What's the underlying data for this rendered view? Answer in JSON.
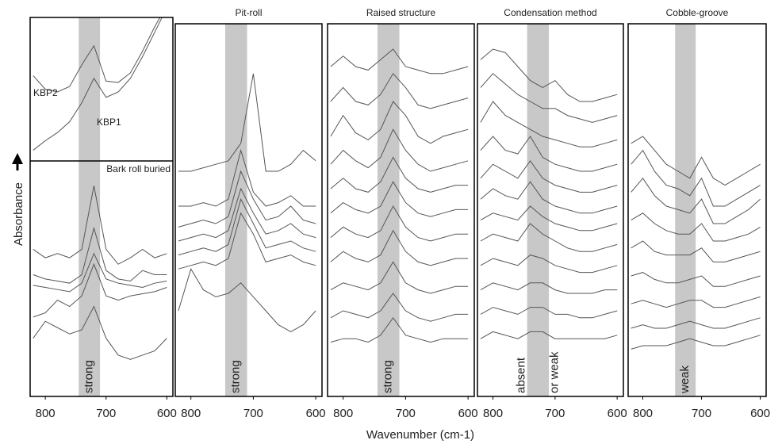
{
  "y_label": "Absorbance",
  "x_label": "Wavenumber (cm-1)",
  "chart_data": [
    {
      "type": "line",
      "title": "Bark roll buried",
      "band": [
        745,
        710
      ],
      "band_color": "#c8c8c8",
      "band_labels": [
        "strong"
      ],
      "xlim": [
        825,
        590
      ],
      "xticks": [
        800,
        700,
        600
      ],
      "ylim": [
        0,
        100
      ],
      "x": [
        820,
        800,
        780,
        760,
        740,
        720,
        700,
        680,
        660,
        640,
        620,
        600
      ],
      "inset": {
        "labels": [
          "KBP2",
          "KBP1"
        ],
        "ylim": [
          0,
          100
        ],
        "series": [
          {
            "color": "#555",
            "values": [
              60,
              50,
              48,
              52,
              68,
              82,
              56,
              55,
              62,
              78,
              96,
              112
            ]
          },
          {
            "color": "#555",
            "values": [
              5,
              12,
              18,
              26,
              40,
              58,
              44,
              48,
              58,
              74,
              92,
              110
            ]
          }
        ]
      },
      "series": [
        {
          "color": "#555",
          "values": [
            62,
            58,
            60,
            58,
            62,
            92,
            62,
            55,
            58,
            62,
            58,
            60
          ]
        },
        {
          "color": "#555",
          "values": [
            50,
            48,
            47,
            46,
            50,
            72,
            52,
            48,
            47,
            52,
            50,
            50
          ]
        },
        {
          "color": "#555",
          "values": [
            45,
            44,
            43,
            42,
            46,
            60,
            48,
            46,
            45,
            44,
            46,
            47
          ]
        },
        {
          "color": "#555",
          "values": [
            30,
            32,
            38,
            35,
            40,
            55,
            40,
            38,
            40,
            41,
            42,
            44
          ]
        },
        {
          "color": "#555",
          "values": [
            20,
            28,
            25,
            22,
            24,
            35,
            20,
            12,
            10,
            12,
            14,
            20
          ]
        }
      ]
    },
    {
      "type": "line",
      "title": "Pit-roll",
      "band": [
        745,
        710
      ],
      "band_color": "#c8c8c8",
      "band_labels": [
        "strong"
      ],
      "xlim": [
        825,
        590
      ],
      "xticks": [
        800,
        700,
        600
      ],
      "ylim": [
        0,
        100
      ],
      "x": [
        820,
        800,
        780,
        760,
        740,
        720,
        700,
        680,
        660,
        640,
        620,
        600
      ],
      "series": [
        {
          "color": "#555",
          "values": [
            60,
            60,
            61,
            62,
            63,
            68,
            88,
            60,
            60,
            62,
            66,
            63
          ]
        },
        {
          "color": "#555",
          "values": [
            50,
            50,
            51,
            50,
            52,
            66,
            54,
            50,
            51,
            53,
            50,
            50
          ]
        },
        {
          "color": "#555",
          "values": [
            44,
            45,
            46,
            45,
            47,
            60,
            52,
            46,
            47,
            50,
            46,
            45
          ]
        },
        {
          "color": "#555",
          "values": [
            40,
            41,
            42,
            41,
            43,
            55,
            48,
            42,
            43,
            45,
            42,
            41
          ]
        },
        {
          "color": "#555",
          "values": [
            36,
            37,
            38,
            37,
            39,
            52,
            45,
            38,
            39,
            40,
            38,
            37
          ]
        },
        {
          "color": "#555",
          "values": [
            32,
            33,
            34,
            33,
            35,
            48,
            42,
            34,
            35,
            36,
            34,
            33
          ]
        },
        {
          "color": "#555",
          "values": [
            20,
            32,
            26,
            24,
            25,
            28,
            24,
            20,
            16,
            14,
            16,
            20
          ]
        }
      ]
    },
    {
      "type": "line",
      "title": "Raised structure",
      "band": [
        745,
        710
      ],
      "band_color": "#c8c8c8",
      "band_labels": [
        "strong"
      ],
      "xlim": [
        825,
        590
      ],
      "xticks": [
        800,
        700,
        600
      ],
      "ylim": [
        0,
        100
      ],
      "x": [
        820,
        800,
        780,
        760,
        740,
        720,
        700,
        680,
        660,
        640,
        620,
        600
      ],
      "series": [
        {
          "color": "#555",
          "values": [
            90,
            93,
            90,
            89,
            92,
            95,
            90,
            89,
            88,
            88,
            89,
            90
          ]
        },
        {
          "color": "#555",
          "values": [
            80,
            84,
            80,
            79,
            82,
            88,
            84,
            79,
            78,
            79,
            80,
            81
          ]
        },
        {
          "color": "#555",
          "values": [
            70,
            76,
            71,
            69,
            72,
            80,
            76,
            70,
            68,
            70,
            71,
            72
          ]
        },
        {
          "color": "#555",
          "values": [
            62,
            66,
            63,
            61,
            64,
            72,
            66,
            62,
            60,
            61,
            62,
            63
          ]
        },
        {
          "color": "#555",
          "values": [
            55,
            58,
            55,
            54,
            57,
            64,
            58,
            55,
            54,
            55,
            56,
            56
          ]
        },
        {
          "color": "#555",
          "values": [
            48,
            51,
            49,
            48,
            50,
            57,
            51,
            48,
            47,
            48,
            49,
            49
          ]
        },
        {
          "color": "#555",
          "values": [
            41,
            44,
            42,
            41,
            43,
            50,
            44,
            41,
            40,
            41,
            42,
            42
          ]
        },
        {
          "color": "#555",
          "values": [
            34,
            37,
            35,
            34,
            36,
            43,
            37,
            34,
            33,
            34,
            35,
            35
          ]
        },
        {
          "color": "#555",
          "values": [
            26,
            28,
            27,
            26,
            28,
            34,
            28,
            26,
            25,
            26,
            27,
            27
          ]
        },
        {
          "color": "#555",
          "values": [
            18,
            20,
            19,
            18,
            20,
            25,
            20,
            18,
            17,
            18,
            19,
            19
          ]
        },
        {
          "color": "#555",
          "values": [
            11,
            12,
            12,
            11,
            13,
            18,
            13,
            12,
            11,
            12,
            12,
            12
          ]
        }
      ]
    },
    {
      "type": "line",
      "title": "Condensation method",
      "band": [
        745,
        710
      ],
      "band_color": "#c8c8c8",
      "band_labels": [
        "absent",
        "or weak"
      ],
      "xlim": [
        825,
        590
      ],
      "xticks": [
        800,
        700,
        600
      ],
      "ylim": [
        0,
        100
      ],
      "x": [
        820,
        800,
        780,
        760,
        740,
        720,
        700,
        680,
        660,
        640,
        620,
        600
      ],
      "series": [
        {
          "color": "#555",
          "values": [
            92,
            95,
            94,
            90,
            86,
            84,
            86,
            82,
            80,
            80,
            81,
            82
          ]
        },
        {
          "color": "#555",
          "values": [
            84,
            88,
            85,
            82,
            80,
            78,
            78,
            76,
            75,
            74,
            75,
            76
          ]
        },
        {
          "color": "#555",
          "values": [
            74,
            80,
            76,
            74,
            72,
            70,
            69,
            68,
            67,
            67,
            68,
            69
          ]
        },
        {
          "color": "#555",
          "values": [
            66,
            70,
            66,
            65,
            70,
            64,
            62,
            61,
            60,
            60,
            61,
            62
          ]
        },
        {
          "color": "#555",
          "values": [
            58,
            62,
            60,
            58,
            63,
            58,
            56,
            55,
            54,
            54,
            55,
            56
          ]
        },
        {
          "color": "#555",
          "values": [
            52,
            55,
            53,
            52,
            57,
            52,
            50,
            49,
            48,
            48,
            49,
            50
          ]
        },
        {
          "color": "#555",
          "values": [
            46,
            48,
            47,
            46,
            50,
            47,
            45,
            44,
            43,
            43,
            44,
            45
          ]
        },
        {
          "color": "#555",
          "values": [
            40,
            42,
            41,
            40,
            45,
            42,
            40,
            38,
            37,
            37,
            38,
            39
          ]
        },
        {
          "color": "#555",
          "values": [
            33,
            35,
            34,
            33,
            36,
            35,
            33,
            32,
            31,
            31,
            32,
            33
          ]
        },
        {
          "color": "#555",
          "values": [
            26,
            28,
            27,
            26,
            28,
            28,
            26,
            25,
            25,
            25,
            26,
            26
          ]
        },
        {
          "color": "#555",
          "values": [
            19,
            21,
            20,
            19,
            21,
            21,
            19,
            19,
            18,
            18,
            19,
            20
          ]
        },
        {
          "color": "#555",
          "values": [
            12,
            14,
            13,
            12,
            14,
            14,
            12,
            12,
            12,
            12,
            12,
            13
          ]
        }
      ]
    },
    {
      "type": "line",
      "title": "Cobble-groove",
      "band": [
        745,
        710
      ],
      "band_color": "#c8c8c8",
      "band_labels": [
        "weak"
      ],
      "xlim": [
        825,
        590
      ],
      "xticks": [
        800,
        700,
        600
      ],
      "ylim": [
        0,
        100
      ],
      "x": [
        820,
        800,
        780,
        760,
        740,
        720,
        700,
        680,
        660,
        640,
        620,
        600
      ],
      "series": [
        {
          "color": "#555",
          "values": [
            68,
            70,
            66,
            62,
            60,
            58,
            64,
            58,
            56,
            58,
            60,
            62
          ]
        },
        {
          "color": "#555",
          "values": [
            62,
            66,
            60,
            56,
            55,
            53,
            58,
            50,
            50,
            52,
            54,
            56
          ]
        },
        {
          "color": "#555",
          "values": [
            54,
            58,
            53,
            50,
            49,
            48,
            52,
            45,
            45,
            47,
            49,
            52
          ]
        },
        {
          "color": "#555",
          "values": [
            46,
            48,
            45,
            43,
            42,
            42,
            45,
            40,
            40,
            41,
            42,
            44
          ]
        },
        {
          "color": "#555",
          "values": [
            38,
            40,
            37,
            36,
            36,
            36,
            38,
            34,
            34,
            35,
            36,
            37
          ]
        },
        {
          "color": "#555",
          "values": [
            30,
            31,
            29,
            28,
            28,
            29,
            30,
            27,
            27,
            28,
            29,
            30
          ]
        },
        {
          "color": "#555",
          "values": [
            22,
            23,
            22,
            21,
            22,
            23,
            23,
            21,
            21,
            22,
            23,
            24
          ]
        },
        {
          "color": "#555",
          "values": [
            15,
            16,
            15,
            15,
            16,
            17,
            16,
            15,
            15,
            16,
            17,
            18
          ]
        },
        {
          "color": "#555",
          "values": [
            9,
            10,
            10,
            10,
            11,
            12,
            11,
            10,
            10,
            11,
            12,
            13
          ]
        }
      ]
    }
  ]
}
